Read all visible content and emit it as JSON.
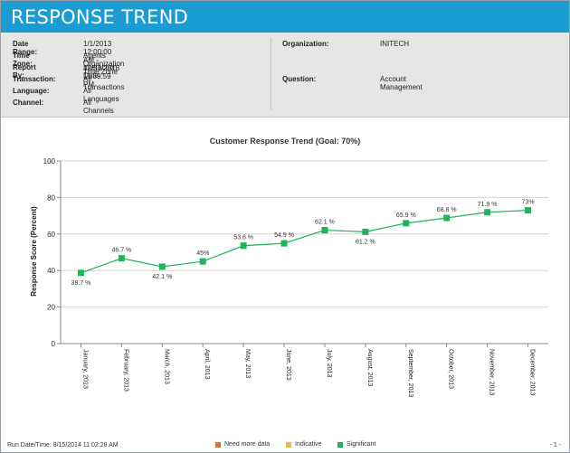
{
  "header": {
    "title": "RESPONSE TREND"
  },
  "info": {
    "left": [
      {
        "label": "Date Range:",
        "value": "1/1/2013 12:00:00 AM - 12/31/2013 11:59:59 PM"
      },
      {
        "label": "Time Zone:",
        "value": "Agents Organization Time Zone"
      },
      {
        "label": "Report By:",
        "value": "Interaction Date"
      },
      {
        "label": "Transaction:",
        "value": "All Transactions"
      },
      {
        "label": "Language:",
        "value": "All Languages"
      },
      {
        "label": "Channel:",
        "value": "All Channels"
      }
    ],
    "right": [
      {
        "label": "Organization:",
        "value": "INITECH"
      },
      {
        "label": "Question:",
        "value": "Account Management"
      }
    ]
  },
  "chart_data": {
    "type": "line",
    "title": "Customer Response Trend (Goal: 70%)",
    "ylabel": "Response Score (Percent)",
    "xlabel": "",
    "ylim": [
      0,
      100
    ],
    "yticks": [
      0,
      20,
      40,
      60,
      80,
      100
    ],
    "grid": true,
    "categories": [
      "January, 2013",
      "February, 2013",
      "March, 2013",
      "April, 2013",
      "May, 2013",
      "June, 2013",
      "July, 2013",
      "August, 2013",
      "September, 2013",
      "October, 2013",
      "November, 2013",
      "December, 2013"
    ],
    "values": [
      38.7,
      46.7,
      42.1,
      45,
      53.6,
      54.9,
      62.1,
      61.2,
      65.9,
      68.8,
      71.9,
      73
    ],
    "data_labels": [
      "38.7 %",
      "46.7 %",
      "42.1 %",
      "45%",
      "53.6 %",
      "54.9 %",
      "62.1 %",
      "61.2 %",
      "65.9 %",
      "68.8 %",
      "71.9 %",
      "73%"
    ],
    "label_position": [
      "below",
      "above",
      "below",
      "above",
      "above",
      "above",
      "above",
      "below",
      "above",
      "above",
      "above",
      "above"
    ],
    "series_color": "#1fb35a",
    "legend_position": "bottom"
  },
  "legend": [
    {
      "label": "Need more data",
      "color": "#d8742c"
    },
    {
      "label": "Indicative",
      "color": "#e8b84a"
    },
    {
      "label": "Significant",
      "color": "#1fb35a"
    }
  ],
  "footer": {
    "run_date": "Run Date/Time: 8/15/2014 11:02:28 AM",
    "page": "- 1 -"
  }
}
